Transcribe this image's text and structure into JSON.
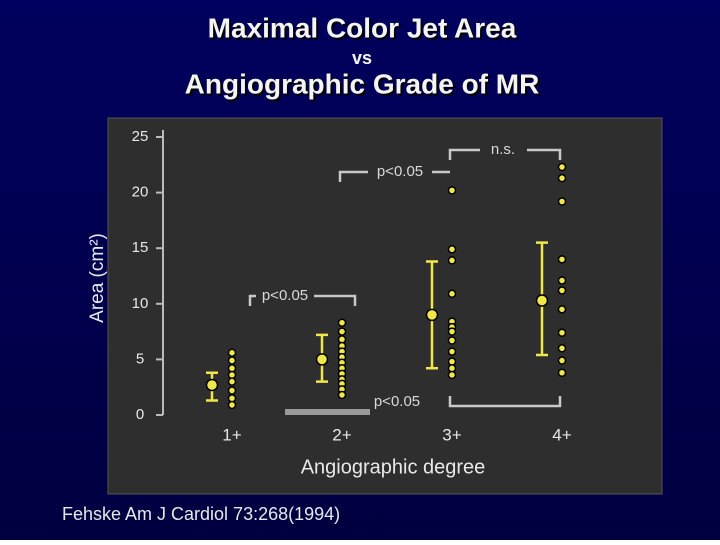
{
  "chart_data": {
    "type": "strip",
    "title": "Maximal Color Jet Area",
    "subtitle_joiner": "vs",
    "subtitle": "Angiographic Grade of MR",
    "y_label": "Area (cm²)",
    "x_label": "Angiographic degree",
    "source": "Fehske   Am J Cardiol  73:268(1994)",
    "categories": [
      "1+",
      "2+",
      "3+",
      "4+"
    ],
    "points": [
      [
        5.6,
        4.9,
        4.2,
        3.6,
        3.0,
        2.2,
        1.5,
        0.9
      ],
      [
        8.3,
        7.5,
        6.8,
        6.2,
        5.7,
        5.2,
        4.7,
        4.2,
        3.7,
        3.2,
        2.8,
        2.3,
        1.8
      ],
      [
        20.2,
        14.9,
        13.9,
        10.9,
        8.4,
        7.9,
        7.5,
        6.7,
        5.7,
        4.8,
        4.2,
        3.6
      ],
      [
        22.3,
        21.3,
        19.2,
        14.0,
        12.1,
        11.2,
        9.5,
        7.4,
        6.0,
        4.9,
        3.8
      ]
    ],
    "means": [
      2.7,
      5.0,
      9.0,
      10.3
    ],
    "err_low": [
      1.3,
      3.0,
      4.2,
      5.4
    ],
    "err_high": [
      3.8,
      7.2,
      13.8,
      15.5
    ],
    "point_color": "#f0e84a",
    "ylim": [
      0,
      25
    ],
    "yticks": [
      0,
      5,
      10,
      15,
      20,
      25
    ],
    "annotations": [
      "n.s.",
      "p<0.05",
      "p<0.05",
      "p<0.05"
    ]
  }
}
